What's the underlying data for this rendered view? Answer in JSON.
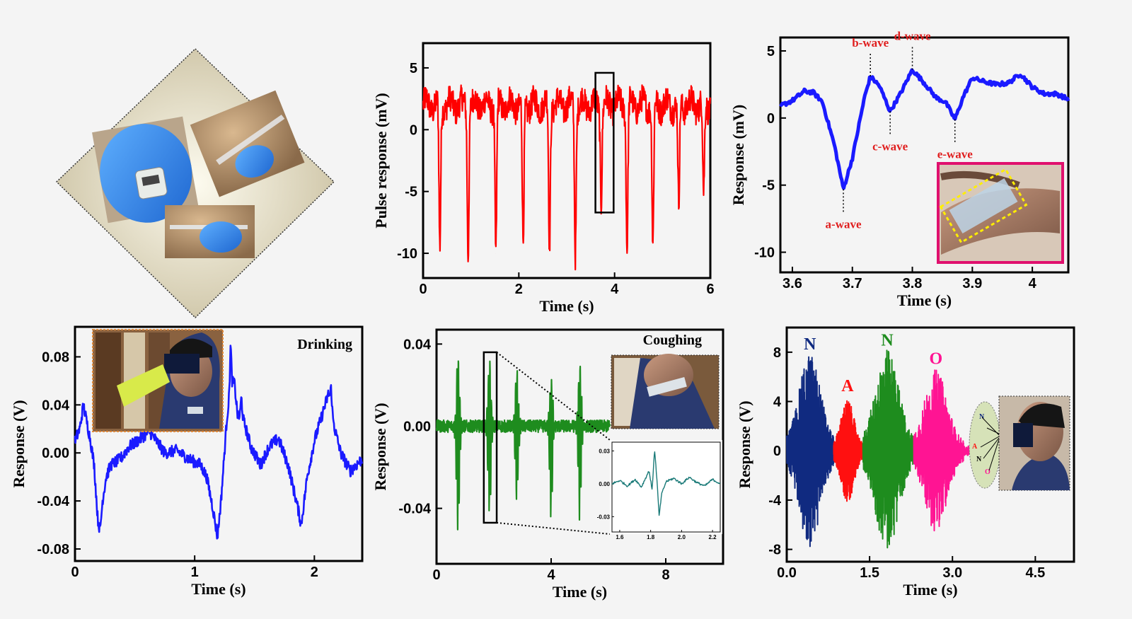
{
  "chart_data": [
    {
      "id": "pulse",
      "type": "line",
      "title": "",
      "xlabel": "Time (s)",
      "ylabel": "Pulse response (mV)",
      "xlim": [
        0,
        6
      ],
      "ylim": [
        -12,
        7
      ],
      "xticks": [
        0,
        2,
        4,
        6
      ],
      "yticks": [
        5,
        0,
        -5,
        -10
      ],
      "color": "#ff0000",
      "baseline": 2,
      "noise": 1.1,
      "peaks": [
        {
          "x": 0.35,
          "y": -9.8
        },
        {
          "x": 0.94,
          "y": -9.8
        },
        {
          "x": 1.52,
          "y": -10
        },
        {
          "x": 2.09,
          "y": -9.5
        },
        {
          "x": 2.64,
          "y": -9.5
        },
        {
          "x": 3.18,
          "y": -9.8
        },
        {
          "x": 3.72,
          "y": -5.5
        },
        {
          "x": 4.26,
          "y": -9.5
        },
        {
          "x": 4.8,
          "y": -9.5
        },
        {
          "x": 5.34,
          "y": -6.5
        },
        {
          "x": 5.86,
          "y": -5.5
        }
      ],
      "highlight_box": {
        "x0": 3.6,
        "x1": 3.98,
        "y0": -6.7,
        "y1": 4.6
      }
    },
    {
      "id": "wave",
      "type": "line",
      "title": "",
      "xlabel": "Time (s)",
      "ylabel": "Response (mV)",
      "xlim": [
        3.58,
        4.06
      ],
      "ylim": [
        -11.5,
        6
      ],
      "xticks": [
        3.6,
        3.7,
        3.8,
        3.9,
        4.0
      ],
      "yticks": [
        5,
        0,
        -5,
        -10
      ],
      "color": "#1a1aff",
      "points": [
        [
          3.58,
          0.9
        ],
        [
          3.6,
          1.3
        ],
        [
          3.62,
          2.0
        ],
        [
          3.635,
          1.9
        ],
        [
          3.65,
          1.2
        ],
        [
          3.67,
          -2
        ],
        [
          3.685,
          -5.3
        ],
        [
          3.7,
          -3
        ],
        [
          3.72,
          1.5
        ],
        [
          3.73,
          3.1
        ],
        [
          3.745,
          2.4
        ],
        [
          3.763,
          0.5
        ],
        [
          3.78,
          1.8
        ],
        [
          3.8,
          3.6
        ],
        [
          3.82,
          2.6
        ],
        [
          3.84,
          1.5
        ],
        [
          3.855,
          1.2
        ],
        [
          3.871,
          -0.1
        ],
        [
          3.885,
          1.6
        ],
        [
          3.9,
          3.0
        ],
        [
          3.92,
          2.7
        ],
        [
          3.94,
          2.5
        ],
        [
          3.96,
          2.6
        ],
        [
          3.98,
          3.3
        ],
        [
          4.0,
          2.3
        ],
        [
          4.02,
          1.8
        ],
        [
          4.04,
          1.8
        ],
        [
          4.06,
          1.4
        ]
      ],
      "annotations": [
        {
          "label": "b-wave",
          "x": 3.73,
          "y": 3.1,
          "pos": "above"
        },
        {
          "label": "d-wave",
          "x": 3.8,
          "y": 3.6,
          "pos": "above"
        },
        {
          "label": "c-wave",
          "x": 3.763,
          "y": 0.5,
          "pos": "below"
        },
        {
          "label": "e-wave",
          "x": 3.871,
          "y": -0.1,
          "pos": "below"
        },
        {
          "label": "a-wave",
          "x": 3.685,
          "y": -5.3,
          "pos": "below"
        }
      ]
    },
    {
      "id": "drinking",
      "type": "line",
      "title": "Drinking",
      "xlabel": "Time (s)",
      "ylabel": "Response (V)",
      "xlim": [
        0,
        2.4
      ],
      "ylim": [
        -0.09,
        0.105
      ],
      "xticks": [
        0,
        1,
        2
      ],
      "yticks": [
        0.08,
        0.04,
        0.0,
        -0.04,
        -0.08
      ],
      "ytickfmt": 2,
      "color": "#1a1aff",
      "noise": 0.005,
      "points": [
        [
          0,
          0.01
        ],
        [
          0.04,
          0.02
        ],
        [
          0.07,
          0.04
        ],
        [
          0.1,
          0.025
        ],
        [
          0.13,
          0.01
        ],
        [
          0.16,
          -0.01
        ],
        [
          0.19,
          -0.055
        ],
        [
          0.21,
          -0.065
        ],
        [
          0.23,
          -0.04
        ],
        [
          0.26,
          -0.02
        ],
        [
          0.3,
          -0.01
        ],
        [
          0.38,
          -0.005
        ],
        [
          0.45,
          0.005
        ],
        [
          0.55,
          0.012
        ],
        [
          0.62,
          0.018
        ],
        [
          0.68,
          0.01
        ],
        [
          0.75,
          0.0
        ],
        [
          0.85,
          0.002
        ],
        [
          0.95,
          -0.005
        ],
        [
          1.05,
          -0.01
        ],
        [
          1.1,
          -0.02
        ],
        [
          1.15,
          -0.045
        ],
        [
          1.19,
          -0.07
        ],
        [
          1.22,
          -0.04
        ],
        [
          1.27,
          0.03
        ],
        [
          1.3,
          0.055
        ],
        [
          1.33,
          0.06
        ],
        [
          1.36,
          0.03
        ],
        [
          1.4,
          0.03
        ],
        [
          1.47,
          0.005
        ],
        [
          1.55,
          -0.01
        ],
        [
          1.62,
          0.005
        ],
        [
          1.7,
          0.012
        ],
        [
          1.78,
          -0.01
        ],
        [
          1.86,
          -0.045
        ],
        [
          1.89,
          -0.06
        ],
        [
          1.94,
          -0.02
        ],
        [
          2.0,
          0.01
        ],
        [
          2.06,
          0.03
        ],
        [
          2.12,
          0.05
        ],
        [
          2.17,
          0.02
        ],
        [
          2.22,
          0.0
        ],
        [
          2.3,
          -0.015
        ],
        [
          2.4,
          -0.005
        ]
      ],
      "spikes": [
        [
          1.3,
          0.088
        ],
        [
          1.39,
          0.045
        ],
        [
          2.14,
          0.053
        ]
      ]
    },
    {
      "id": "coughing",
      "type": "line",
      "title": "Coughing",
      "xlabel": "Time (s)",
      "ylabel": "Response (V)",
      "xlim": [
        0,
        10
      ],
      "ylim": [
        -0.067,
        0.047
      ],
      "xticks": [
        0,
        4,
        8
      ],
      "yticks": [
        0.04,
        0.0,
        -0.04
      ],
      "ytickfmt": 2,
      "color": "#1e8c1e",
      "signal_end": 6.05,
      "baseline": 0.0,
      "noise": 0.003,
      "bursts": [
        {
          "x": 0.75,
          "max": 0.037,
          "min": -0.054
        },
        {
          "x": 1.85,
          "max": 0.033,
          "min": -0.045
        },
        {
          "x": 2.8,
          "max": 0.028,
          "min": -0.038
        },
        {
          "x": 4.0,
          "max": 0.026,
          "min": -0.045
        },
        {
          "x": 5.0,
          "max": 0.032,
          "min": -0.046
        }
      ],
      "highlight_box": {
        "x0": 1.65,
        "x1": 2.1,
        "y0": -0.047,
        "y1": 0.036
      },
      "inset": {
        "type": "line",
        "xlim": [
          1.55,
          2.25
        ],
        "ylim": [
          -0.044,
          0.038
        ],
        "xticks": [
          1.6,
          1.8,
          2.0,
          2.2
        ],
        "yticks": [
          0.03,
          0.0,
          -0.03
        ],
        "color": "#1a7a78",
        "points": [
          [
            1.55,
            0.0
          ],
          [
            1.6,
            0.003
          ],
          [
            1.65,
            -0.002
          ],
          [
            1.7,
            0.004
          ],
          [
            1.74,
            -0.003
          ],
          [
            1.77,
            0.006
          ],
          [
            1.79,
            0.012
          ],
          [
            1.81,
            -0.006
          ],
          [
            1.825,
            0.032
          ],
          [
            1.84,
            0.005
          ],
          [
            1.855,
            -0.03
          ],
          [
            1.87,
            -0.01
          ],
          [
            1.9,
            0.002
          ],
          [
            1.95,
            0.005
          ],
          [
            2.0,
            0.0
          ],
          [
            2.05,
            0.006
          ],
          [
            2.1,
            0.001
          ],
          [
            2.15,
            -0.002
          ],
          [
            2.2,
            0.004
          ],
          [
            2.25,
            0.0
          ]
        ]
      }
    },
    {
      "id": "speech",
      "type": "line",
      "title": "",
      "xlabel": "Time (s)",
      "ylabel": "Response (V)",
      "xlim": [
        0,
        5.2
      ],
      "ylim": [
        -9,
        10
      ],
      "xticks": [
        0,
        1.5,
        3.0,
        4.5
      ],
      "xtickfmt": 1,
      "yticks": [
        8,
        4,
        0,
        -4,
        -8
      ],
      "segments": [
        {
          "label": "N",
          "color": "#102a80",
          "x0": 0.0,
          "x1": 0.85,
          "peak_x": 0.42,
          "amp": 7.2
        },
        {
          "label": "A",
          "color": "#ff1010",
          "x0": 0.85,
          "x1": 1.38,
          "peak_x": 1.1,
          "amp": 3.8
        },
        {
          "label": "N",
          "color": "#1e8c1e",
          "x0": 1.38,
          "x1": 2.3,
          "peak_x": 1.82,
          "amp": 7.5
        },
        {
          "label": "O",
          "color": "#ff1493",
          "x0": 2.3,
          "x1": 3.2,
          "peak_x": 2.7,
          "amp": 6.0
        }
      ],
      "tail": {
        "x0": 3.2,
        "x1": 3.3,
        "amp": 0.4
      }
    }
  ]
}
